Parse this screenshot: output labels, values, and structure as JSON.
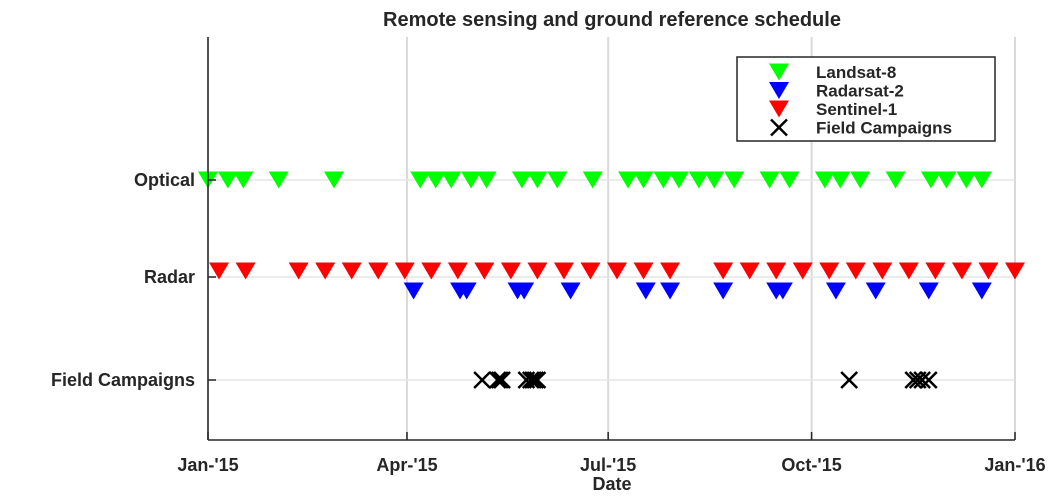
{
  "chart_data": {
    "type": "scatter",
    "title": "Remote sensing and ground reference schedule",
    "xlabel": "Date",
    "ylabel": "",
    "xlim": [
      "2015-01-01",
      "2016-01-01"
    ],
    "x_ticks": [
      "2015-01-01",
      "2015-04-01",
      "2015-07-01",
      "2015-10-01",
      "2016-01-01"
    ],
    "x_tick_labels": [
      "Jan-'15",
      "Apr-'15",
      "Jul-'15",
      "Oct-'15",
      "Jan-'16"
    ],
    "y_categories": [
      "Optical",
      "Radar",
      "Field Campaigns"
    ],
    "grid": true,
    "legend_position": "top-right",
    "legend": [
      "Landsat-8",
      "Radarsat-2",
      "Sentinel-1",
      "Field Campaigns"
    ],
    "series": [
      {
        "name": "Landsat-8",
        "marker": "triangle-down",
        "color": "#00ff00",
        "category": "Optical",
        "x": [
          "2015-01-01",
          "2015-01-10",
          "2015-01-17",
          "2015-02-02",
          "2015-02-27",
          "2015-04-07",
          "2015-04-14",
          "2015-04-21",
          "2015-04-30",
          "2015-05-07",
          "2015-05-23",
          "2015-05-30",
          "2015-06-08",
          "2015-06-24",
          "2015-07-10",
          "2015-07-17",
          "2015-07-26",
          "2015-08-02",
          "2015-08-11",
          "2015-08-18",
          "2015-08-27",
          "2015-09-12",
          "2015-09-21",
          "2015-10-07",
          "2015-10-14",
          "2015-10-23",
          "2015-11-08",
          "2015-11-24",
          "2015-12-01",
          "2015-12-10",
          "2015-12-17"
        ]
      },
      {
        "name": "Sentinel-1",
        "marker": "triangle-down",
        "color": "#ff0000",
        "category": "Radar",
        "x": [
          "2015-01-06",
          "2015-01-18",
          "2015-02-11",
          "2015-02-23",
          "2015-03-07",
          "2015-03-19",
          "2015-03-31",
          "2015-04-12",
          "2015-04-24",
          "2015-05-06",
          "2015-05-18",
          "2015-05-30",
          "2015-06-11",
          "2015-06-23",
          "2015-07-05",
          "2015-07-17",
          "2015-07-29",
          "2015-08-22",
          "2015-09-03",
          "2015-09-15",
          "2015-09-27",
          "2015-10-09",
          "2015-10-21",
          "2015-11-02",
          "2015-11-14",
          "2015-11-26",
          "2015-12-08",
          "2015-12-20",
          "2016-01-01"
        ]
      },
      {
        "name": "Radarsat-2",
        "marker": "triangle-down",
        "color": "#0000ff",
        "category": "Radar",
        "x": [
          "2015-04-04",
          "2015-04-25",
          "2015-04-28",
          "2015-05-21",
          "2015-05-24",
          "2015-06-14",
          "2015-07-18",
          "2015-07-29",
          "2015-08-22",
          "2015-09-15",
          "2015-09-18",
          "2015-10-12",
          "2015-10-30",
          "2015-11-23",
          "2015-12-17"
        ]
      },
      {
        "name": "Field Campaigns",
        "marker": "x",
        "color": "#000000",
        "category": "Field Campaigns",
        "x": [
          "2015-05-05",
          "2015-05-12",
          "2015-05-13",
          "2015-05-14",
          "2015-05-25",
          "2015-05-27",
          "2015-05-28",
          "2015-05-29",
          "2015-05-30",
          "2015-10-18",
          "2015-11-16",
          "2015-11-18",
          "2015-11-20",
          "2015-11-23"
        ]
      }
    ]
  }
}
